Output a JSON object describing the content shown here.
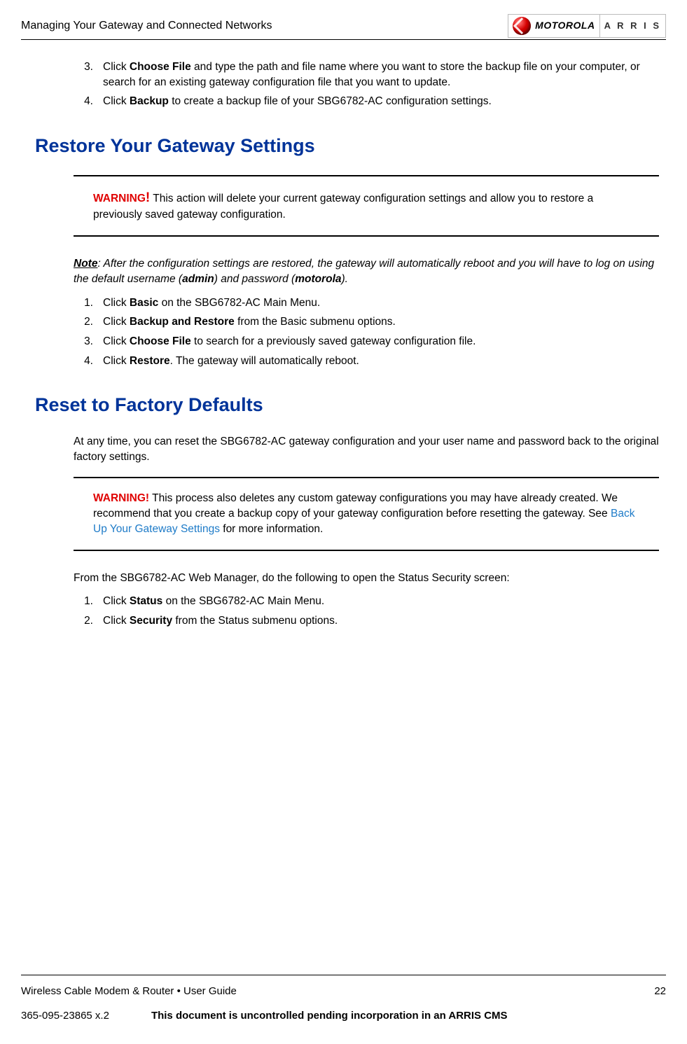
{
  "header": {
    "title": "Managing Your Gateway and Connected Networks",
    "logo1_text": "MOTOROLA",
    "logo2_text": "A R R I S"
  },
  "top_list": [
    {
      "num": "3.",
      "prefix": "Click ",
      "bold": "Choose File",
      "suffix": " and type the path and file name where you want to store the backup file on your computer, or search for an existing gateway configuration file that you want to update."
    },
    {
      "num": "4.",
      "prefix": "Click ",
      "bold": "Backup",
      "suffix": " to create a backup file of your SBG6782-AC configuration settings."
    }
  ],
  "section_restore": {
    "heading": "Restore Your Gateway Settings",
    "warning_label": "WARNING",
    "warning_bang": "!",
    "warning_text": " This action will delete your current gateway configuration settings and allow you to restore a previously saved gateway configuration.",
    "note_label": "Note",
    "note_text_1": ": After the configuration settings are restored, the gateway will automatically reboot and you will have to log on using the default username (",
    "note_admin": "admin",
    "note_text_2": ") and password (",
    "note_motorola": "motorola",
    "note_text_3": ").",
    "steps": [
      {
        "num": "1.",
        "prefix": "Click ",
        "bold": "Basic",
        "suffix": " on the SBG6782-AC Main Menu."
      },
      {
        "num": "2.",
        "prefix": "Click ",
        "bold": "Backup and Restore",
        "suffix": " from the Basic submenu options."
      },
      {
        "num": "3.",
        "prefix": "Click ",
        "bold": "Choose File",
        "suffix": " to search for a previously saved gateway configuration file."
      },
      {
        "num": "4.",
        "prefix": "Click ",
        "bold": "Restore",
        "suffix": ". The gateway will automatically reboot."
      }
    ]
  },
  "section_reset": {
    "heading": "Reset to Factory Defaults",
    "intro": "At any time, you can reset the SBG6782-AC gateway configuration and your user name and password back to the original factory settings.",
    "warning_label": "WARNING!",
    "warning_text_1": " This process also deletes any custom gateway configurations you may have already created. We recommend that you create a backup copy of your gateway configuration before resetting the gateway. See ",
    "warning_link": "Back Up Your Gateway Settings",
    "warning_text_2": " for more information.",
    "pre_steps": "From the SBG6782-AC Web Manager, do the following to open the Status Security screen:",
    "steps": [
      {
        "num": "1.",
        "prefix": "Click ",
        "bold": "Status",
        "suffix": " on the SBG6782-AC Main Menu."
      },
      {
        "num": "2.",
        "prefix": "Click ",
        "bold": "Security",
        "suffix": " from the Status submenu options."
      }
    ]
  },
  "footer": {
    "left1": "Wireless Cable Modem & Router • User Guide",
    "right1": "22",
    "left2": "365-095-23865 x.2",
    "center2": "This document is uncontrolled pending incorporation in an ARRIS CMS"
  },
  "colors": {
    "heading": "#003399",
    "warning": "#e00000",
    "link": "#1e7bc8",
    "text": "#000000",
    "bg": "#ffffff"
  }
}
